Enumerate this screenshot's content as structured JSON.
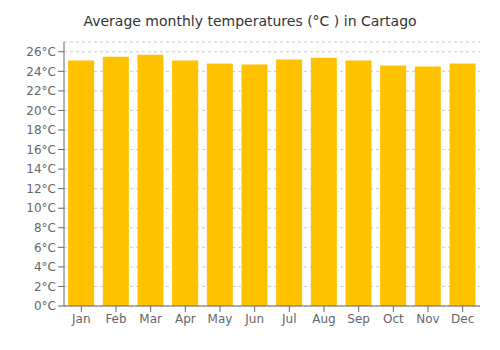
{
  "chart_data": {
    "type": "bar",
    "title": "Average monthly temperatures (°C ) in Cartago",
    "categories": [
      "Jan",
      "Feb",
      "Mar",
      "Apr",
      "May",
      "Jun",
      "Jul",
      "Aug",
      "Sep",
      "Oct",
      "Nov",
      "Dec"
    ],
    "values": [
      25.1,
      25.5,
      25.7,
      25.1,
      24.8,
      24.7,
      25.2,
      25.4,
      25.1,
      24.6,
      24.5,
      24.8
    ],
    "color": "#FFC200",
    "ylim": [
      0,
      27
    ],
    "yticks": [
      {
        "value": 0,
        "label": "0°C"
      },
      {
        "value": 2,
        "label": "2°C"
      },
      {
        "value": 4,
        "label": "4°C"
      },
      {
        "value": 6,
        "label": "6°C"
      },
      {
        "value": 8,
        "label": "8°C"
      },
      {
        "value": 10,
        "label": "10°C"
      },
      {
        "value": 12,
        "label": "12°C"
      },
      {
        "value": 14,
        "label": "14°C"
      },
      {
        "value": 16,
        "label": "16°C"
      },
      {
        "value": 18,
        "label": "18°C"
      },
      {
        "value": 20,
        "label": "20°C"
      },
      {
        "value": 22,
        "label": "22°C"
      },
      {
        "value": 24,
        "label": "24°C"
      },
      {
        "value": 26,
        "label": "26°C"
      }
    ],
    "grid": true
  }
}
